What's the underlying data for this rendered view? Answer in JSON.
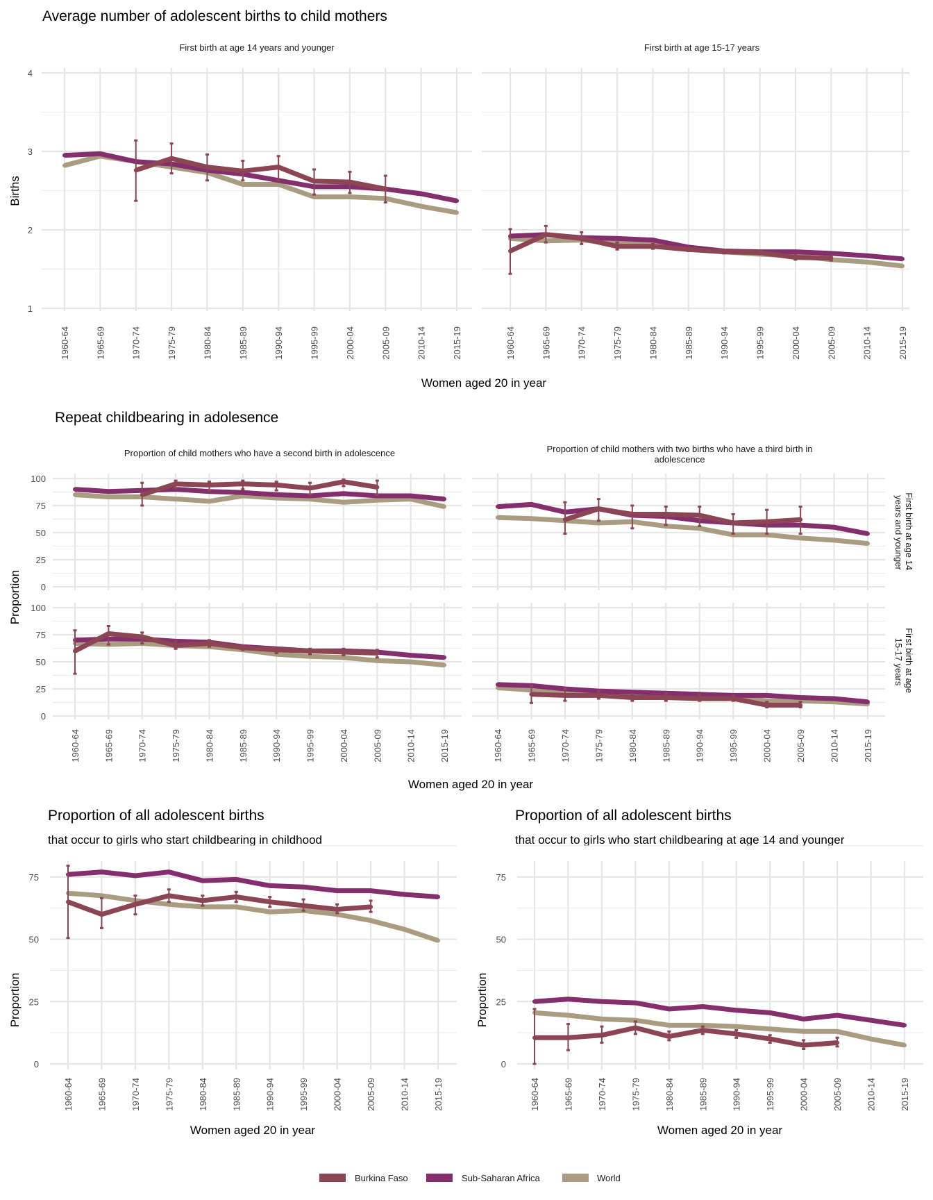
{
  "colors": {
    "Burkina Faso": "#8B4553",
    "Sub-Saharan Africa": "#842E6E",
    "World": "#A99C80",
    "grid": "#E6E6E6"
  },
  "legend": {
    "items": [
      "Burkina Faso",
      "Sub-Saharan Africa",
      "World"
    ],
    "position": "bottom"
  },
  "sections": {
    "births": {
      "title": "Average number of adolescent births to child mothers",
      "xlabel": "Women aged 20 in year",
      "ylabel": "Births"
    },
    "repeat": {
      "title": "Repeat childbearing in adolesence",
      "xlabel": "Women aged 20 in year",
      "ylabel": "Proportion",
      "row_strips": [
        "First birth at age 14 years and younger",
        "First birth at age 15-17 years"
      ]
    },
    "prop_childhood": {
      "title": "Proportion of all adolescent births",
      "subtitle": "that occur to girls who start childbearing in childhood",
      "xlabel": "Women aged 20 in year",
      "ylabel": "Proportion"
    },
    "prop_14": {
      "title": "Proportion of all adolescent births",
      "subtitle": "that occur to girls who start childbearing at age 14 and younger",
      "xlabel": "Women aged 20 in year",
      "ylabel": "Proportion"
    }
  },
  "chart_data": [
    {
      "id": "births_14",
      "type": "line",
      "strip": "First birth at age 14 years and younger",
      "categories": [
        "1960-64",
        "1965-69",
        "1970-74",
        "1975-79",
        "1980-84",
        "1985-89",
        "1990-94",
        "1995-99",
        "2000-04",
        "2005-09",
        "2010-14",
        "2015-19"
      ],
      "ylim": [
        1,
        4
      ],
      "yticks": [
        1,
        2,
        3,
        4
      ],
      "ylabel": "Births",
      "xlabel": "Women aged 20 in year",
      "series": [
        {
          "name": "Sub-Saharan Africa",
          "values": [
            2.95,
            2.97,
            2.87,
            2.84,
            2.76,
            2.71,
            2.63,
            2.55,
            2.55,
            2.52,
            2.46,
            2.37
          ]
        },
        {
          "name": "World",
          "values": [
            2.82,
            2.94,
            2.87,
            2.8,
            2.73,
            2.58,
            2.58,
            2.42,
            2.42,
            2.4,
            2.3,
            2.22
          ]
        },
        {
          "name": "Burkina Faso",
          "values": [
            null,
            null,
            2.76,
            2.91,
            2.8,
            2.75,
            2.8,
            2.62,
            2.61,
            2.52,
            null,
            null
          ],
          "lower": [
            null,
            null,
            2.37,
            2.72,
            2.63,
            2.63,
            2.63,
            2.45,
            2.47,
            2.35,
            null,
            null
          ],
          "upper": [
            null,
            null,
            3.14,
            3.1,
            2.96,
            2.88,
            2.94,
            2.77,
            2.74,
            2.69,
            null,
            null
          ]
        }
      ]
    },
    {
      "id": "births_15_17",
      "type": "line",
      "strip": "First birth at age 15-17 years",
      "categories": [
        "1960-64",
        "1965-69",
        "1970-74",
        "1975-79",
        "1980-84",
        "1985-89",
        "1990-94",
        "1995-99",
        "2000-04",
        "2005-09",
        "2010-14",
        "2015-19"
      ],
      "ylim": [
        1,
        4
      ],
      "yticks": [
        1,
        2,
        3,
        4
      ],
      "series": [
        {
          "name": "Sub-Saharan Africa",
          "values": [
            1.92,
            1.94,
            1.9,
            1.89,
            1.87,
            1.78,
            1.73,
            1.72,
            1.72,
            1.7,
            1.67,
            1.63
          ]
        },
        {
          "name": "World",
          "values": [
            1.89,
            1.86,
            1.87,
            1.83,
            1.82,
            1.76,
            1.72,
            1.69,
            1.67,
            1.62,
            1.59,
            1.54
          ]
        },
        {
          "name": "Burkina Faso",
          "values": [
            1.73,
            1.94,
            1.89,
            1.79,
            1.79,
            1.75,
            1.72,
            1.71,
            1.65,
            1.64,
            null,
            null
          ],
          "lower": [
            1.44,
            1.84,
            1.82,
            1.75,
            1.76,
            1.73,
            1.7,
            1.69,
            1.62,
            1.61,
            null,
            null
          ],
          "upper": [
            2.01,
            2.05,
            1.97,
            1.84,
            1.82,
            1.77,
            1.74,
            1.73,
            1.68,
            1.67,
            null,
            null
          ]
        }
      ]
    },
    {
      "id": "second_14",
      "type": "line",
      "strip": "Proportion of child mothers who have a second birth in adolescence",
      "row_strip": "First birth at age 14 years and younger",
      "categories": [
        "1960-64",
        "1965-69",
        "1970-74",
        "1975-79",
        "1980-84",
        "1985-89",
        "1990-94",
        "1995-99",
        "2000-04",
        "2005-09",
        "2010-14",
        "2015-19"
      ],
      "ylim": [
        0,
        100
      ],
      "yticks": [
        0,
        25,
        50,
        75,
        100
      ],
      "series": [
        {
          "name": "Sub-Saharan Africa",
          "values": [
            90,
            88,
            89,
            90,
            88,
            87,
            85,
            84,
            86,
            84,
            84,
            81
          ]
        },
        {
          "name": "World",
          "values": [
            85,
            83,
            83,
            81,
            79,
            84,
            82,
            81,
            78,
            80,
            81,
            74
          ]
        },
        {
          "name": "Burkina Faso",
          "values": [
            null,
            null,
            85,
            95,
            94,
            95,
            94,
            91,
            97,
            92,
            null,
            null
          ],
          "lower": [
            null,
            null,
            75,
            91,
            89,
            90,
            89,
            85,
            93,
            85,
            null,
            null
          ],
          "upper": [
            null,
            null,
            96,
            98,
            97,
            98,
            97,
            96,
            99,
            98,
            null,
            null
          ]
        }
      ]
    },
    {
      "id": "third_14",
      "type": "line",
      "strip": "Proportion of child mothers with two births who have a third birth in adolescence",
      "row_strip": "First birth at age 14 years and younger",
      "categories": [
        "1960-64",
        "1965-69",
        "1970-74",
        "1975-79",
        "1980-84",
        "1985-89",
        "1990-94",
        "1995-99",
        "2000-04",
        "2005-09",
        "2010-14",
        "2015-19"
      ],
      "ylim": [
        0,
        100
      ],
      "yticks": [
        0,
        25,
        50,
        75,
        100
      ],
      "series": [
        {
          "name": "Sub-Saharan Africa",
          "values": [
            74,
            76,
            69,
            72,
            66,
            65,
            61,
            59,
            57,
            57,
            55,
            49
          ]
        },
        {
          "name": "World",
          "values": [
            64,
            63,
            61,
            59,
            60,
            56,
            54,
            48,
            48,
            45,
            43,
            40
          ]
        },
        {
          "name": "Burkina Faso",
          "values": [
            null,
            null,
            62,
            72,
            67,
            67,
            66,
            59,
            60,
            62,
            null,
            null
          ],
          "lower": [
            null,
            null,
            49,
            61,
            54,
            57,
            56,
            49,
            49,
            49,
            null,
            null
          ],
          "upper": [
            null,
            null,
            78,
            81,
            75,
            74,
            74,
            67,
            71,
            74,
            null,
            null
          ]
        }
      ]
    },
    {
      "id": "second_15_17",
      "type": "line",
      "strip": "Proportion of child mothers who have a second birth in adolescence",
      "row_strip": "First birth at age 15-17 years",
      "categories": [
        "1960-64",
        "1965-69",
        "1970-74",
        "1975-79",
        "1980-84",
        "1985-89",
        "1990-94",
        "1995-99",
        "2000-04",
        "2005-09",
        "2010-14",
        "2015-19"
      ],
      "ylim": [
        0,
        100
      ],
      "yticks": [
        0,
        25,
        50,
        75,
        100
      ],
      "series": [
        {
          "name": "Sub-Saharan Africa",
          "values": [
            70,
            71,
            71,
            69,
            68,
            64,
            62,
            60,
            60,
            59,
            56,
            54
          ]
        },
        {
          "name": "World",
          "values": [
            67,
            66,
            67,
            65,
            64,
            61,
            57,
            55,
            54,
            51,
            50,
            47
          ]
        },
        {
          "name": "Burkina Faso",
          "values": [
            60,
            76,
            73,
            65,
            67,
            63,
            61,
            60,
            59,
            58,
            null,
            null
          ],
          "lower": [
            39,
            66,
            67,
            62,
            64,
            61,
            58,
            57,
            56,
            54,
            null,
            null
          ],
          "upper": [
            79,
            83,
            77,
            69,
            70,
            65,
            63,
            62,
            62,
            61,
            null,
            null
          ]
        }
      ]
    },
    {
      "id": "third_15_17",
      "type": "line",
      "strip": "Proportion of child mothers with two births who have a third birth in adolescence",
      "row_strip": "First birth at age 15-17 years",
      "categories": [
        "1960-64",
        "1965-69",
        "1970-74",
        "1975-79",
        "1980-84",
        "1985-89",
        "1990-94",
        "1995-99",
        "2000-04",
        "2005-09",
        "2010-14",
        "2015-19"
      ],
      "ylim": [
        0,
        100
      ],
      "yticks": [
        0,
        25,
        50,
        75,
        100
      ],
      "series": [
        {
          "name": "Sub-Saharan Africa",
          "values": [
            29,
            28,
            25,
            23,
            22,
            21,
            20,
            19,
            19,
            17,
            16,
            13
          ]
        },
        {
          "name": "World",
          "values": [
            26,
            24,
            23,
            22,
            21,
            20,
            19,
            18,
            14,
            14,
            13,
            11
          ]
        },
        {
          "name": "Burkina Faso",
          "values": [
            null,
            20,
            19,
            19,
            17,
            17,
            16,
            16,
            10,
            10,
            null,
            null
          ],
          "lower": [
            null,
            12,
            14,
            16,
            14,
            14,
            14,
            14,
            8,
            8,
            null,
            null
          ],
          "upper": [
            null,
            28,
            25,
            23,
            20,
            21,
            20,
            19,
            13,
            13,
            null,
            null
          ]
        }
      ]
    },
    {
      "id": "prop_childhood",
      "type": "line",
      "title": "Proportion of all adolescent births",
      "subtitle": "that occur to girls who start childbearing in childhood",
      "categories": [
        "1960-64",
        "1965-69",
        "1970-74",
        "1975-79",
        "1980-84",
        "1985-89",
        "1990-94",
        "1995-99",
        "2000-04",
        "2005-09",
        "2010-14",
        "2015-19"
      ],
      "ylim": [
        0,
        90
      ],
      "yticks": [
        0,
        25,
        50,
        75
      ],
      "ylabel": "Proportion",
      "xlabel": "Women aged 20 in year",
      "series": [
        {
          "name": "Sub-Saharan Africa",
          "values": [
            76,
            77,
            75.5,
            77,
            73.5,
            74,
            71.5,
            71,
            69.5,
            69.5,
            68,
            67
          ]
        },
        {
          "name": "World",
          "values": [
            68.5,
            67.5,
            65.5,
            64,
            63,
            63,
            61,
            61.5,
            60,
            57.5,
            54,
            49.5
          ]
        },
        {
          "name": "Burkina Faso",
          "values": [
            65,
            60,
            64,
            67.5,
            65.5,
            67,
            65,
            63.5,
            62,
            63,
            null,
            null
          ],
          "lower": [
            50.5,
            54.5,
            60,
            65,
            63.5,
            65,
            63,
            61.5,
            60.5,
            61,
            null,
            null
          ],
          "upper": [
            79.5,
            66.5,
            67.5,
            70,
            67.5,
            69,
            67,
            66,
            64,
            65.5,
            null,
            null
          ]
        }
      ]
    },
    {
      "id": "prop_14",
      "type": "line",
      "title": "Proportion of all adolescent births",
      "subtitle": "that occur to girls who start childbearing at age 14 and younger",
      "categories": [
        "1960-64",
        "1965-69",
        "1970-74",
        "1975-79",
        "1980-84",
        "1985-89",
        "1990-94",
        "1995-99",
        "2000-04",
        "2005-09",
        "2010-14",
        "2015-19"
      ],
      "ylim": [
        0,
        90
      ],
      "yticks": [
        0,
        25,
        50,
        75
      ],
      "ylabel": "Proportion",
      "xlabel": "Women aged 20 in year",
      "series": [
        {
          "name": "Sub-Saharan Africa",
          "values": [
            25,
            26,
            25,
            24.5,
            22,
            23,
            21.5,
            20.5,
            18,
            19.5,
            17.5,
            15.5
          ]
        },
        {
          "name": "World",
          "values": [
            20.5,
            19.5,
            18,
            17.5,
            15.5,
            15.5,
            15,
            14,
            13,
            13,
            10,
            7.5
          ]
        },
        {
          "name": "Burkina Faso",
          "values": [
            10.5,
            10.5,
            11.5,
            14.5,
            11,
            13.5,
            12,
            10,
            7.5,
            8.5,
            null,
            null
          ],
          "lower": [
            0,
            5.5,
            8.5,
            12,
            9.5,
            12,
            10.5,
            8.5,
            6,
            7,
            null,
            null
          ],
          "upper": [
            22,
            16,
            15,
            17,
            13,
            15,
            13.5,
            11.5,
            9.5,
            10.5,
            null,
            null
          ]
        }
      ]
    }
  ]
}
